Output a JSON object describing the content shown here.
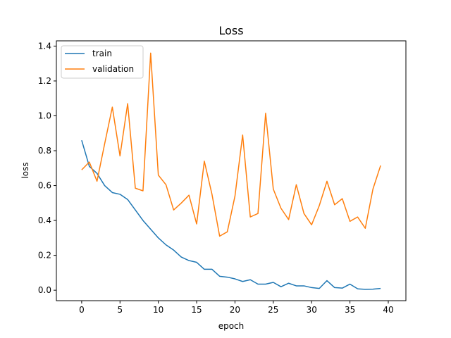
{
  "chart_data": {
    "type": "line",
    "title": "Loss",
    "xlabel": "epoch",
    "ylabel": "loss",
    "xlim": [
      -3.3,
      42.3
    ],
    "ylim": [
      -0.06,
      1.43
    ],
    "xticks": [
      0,
      5,
      10,
      15,
      20,
      25,
      30,
      35,
      40
    ],
    "yticks": [
      0.0,
      0.2,
      0.4,
      0.6,
      0.8,
      1.0,
      1.2,
      1.4
    ],
    "grid": false,
    "legend_position": "top-left",
    "x": [
      0,
      1,
      2,
      3,
      4,
      5,
      6,
      7,
      8,
      9,
      10,
      11,
      12,
      13,
      14,
      15,
      16,
      17,
      18,
      19,
      20,
      21,
      22,
      23,
      24,
      25,
      26,
      27,
      28,
      29,
      30,
      31,
      32,
      33,
      34,
      35,
      36,
      37,
      38,
      39
    ],
    "series": [
      {
        "name": "train",
        "color": "#1f77b4",
        "values": [
          0.86,
          0.71,
          0.67,
          0.6,
          0.56,
          0.55,
          0.52,
          0.46,
          0.4,
          0.35,
          0.3,
          0.26,
          0.23,
          0.19,
          0.17,
          0.16,
          0.12,
          0.12,
          0.08,
          0.075,
          0.065,
          0.05,
          0.06,
          0.035,
          0.035,
          0.045,
          0.02,
          0.04,
          0.025,
          0.025,
          0.015,
          0.01,
          0.055,
          0.015,
          0.012,
          0.035,
          0.008,
          0.005,
          0.006,
          0.01
        ]
      },
      {
        "name": "validation",
        "color": "#ff7f0e",
        "values": [
          0.69,
          0.735,
          0.625,
          0.84,
          1.05,
          0.77,
          1.07,
          0.585,
          0.57,
          1.36,
          0.66,
          0.605,
          0.46,
          0.5,
          0.545,
          0.38,
          0.74,
          0.55,
          0.31,
          0.335,
          0.54,
          0.89,
          0.42,
          0.44,
          1.015,
          0.58,
          0.47,
          0.405,
          0.605,
          0.44,
          0.375,
          0.485,
          0.625,
          0.49,
          0.525,
          0.395,
          0.42,
          0.355,
          0.58,
          0.715
        ]
      }
    ]
  }
}
